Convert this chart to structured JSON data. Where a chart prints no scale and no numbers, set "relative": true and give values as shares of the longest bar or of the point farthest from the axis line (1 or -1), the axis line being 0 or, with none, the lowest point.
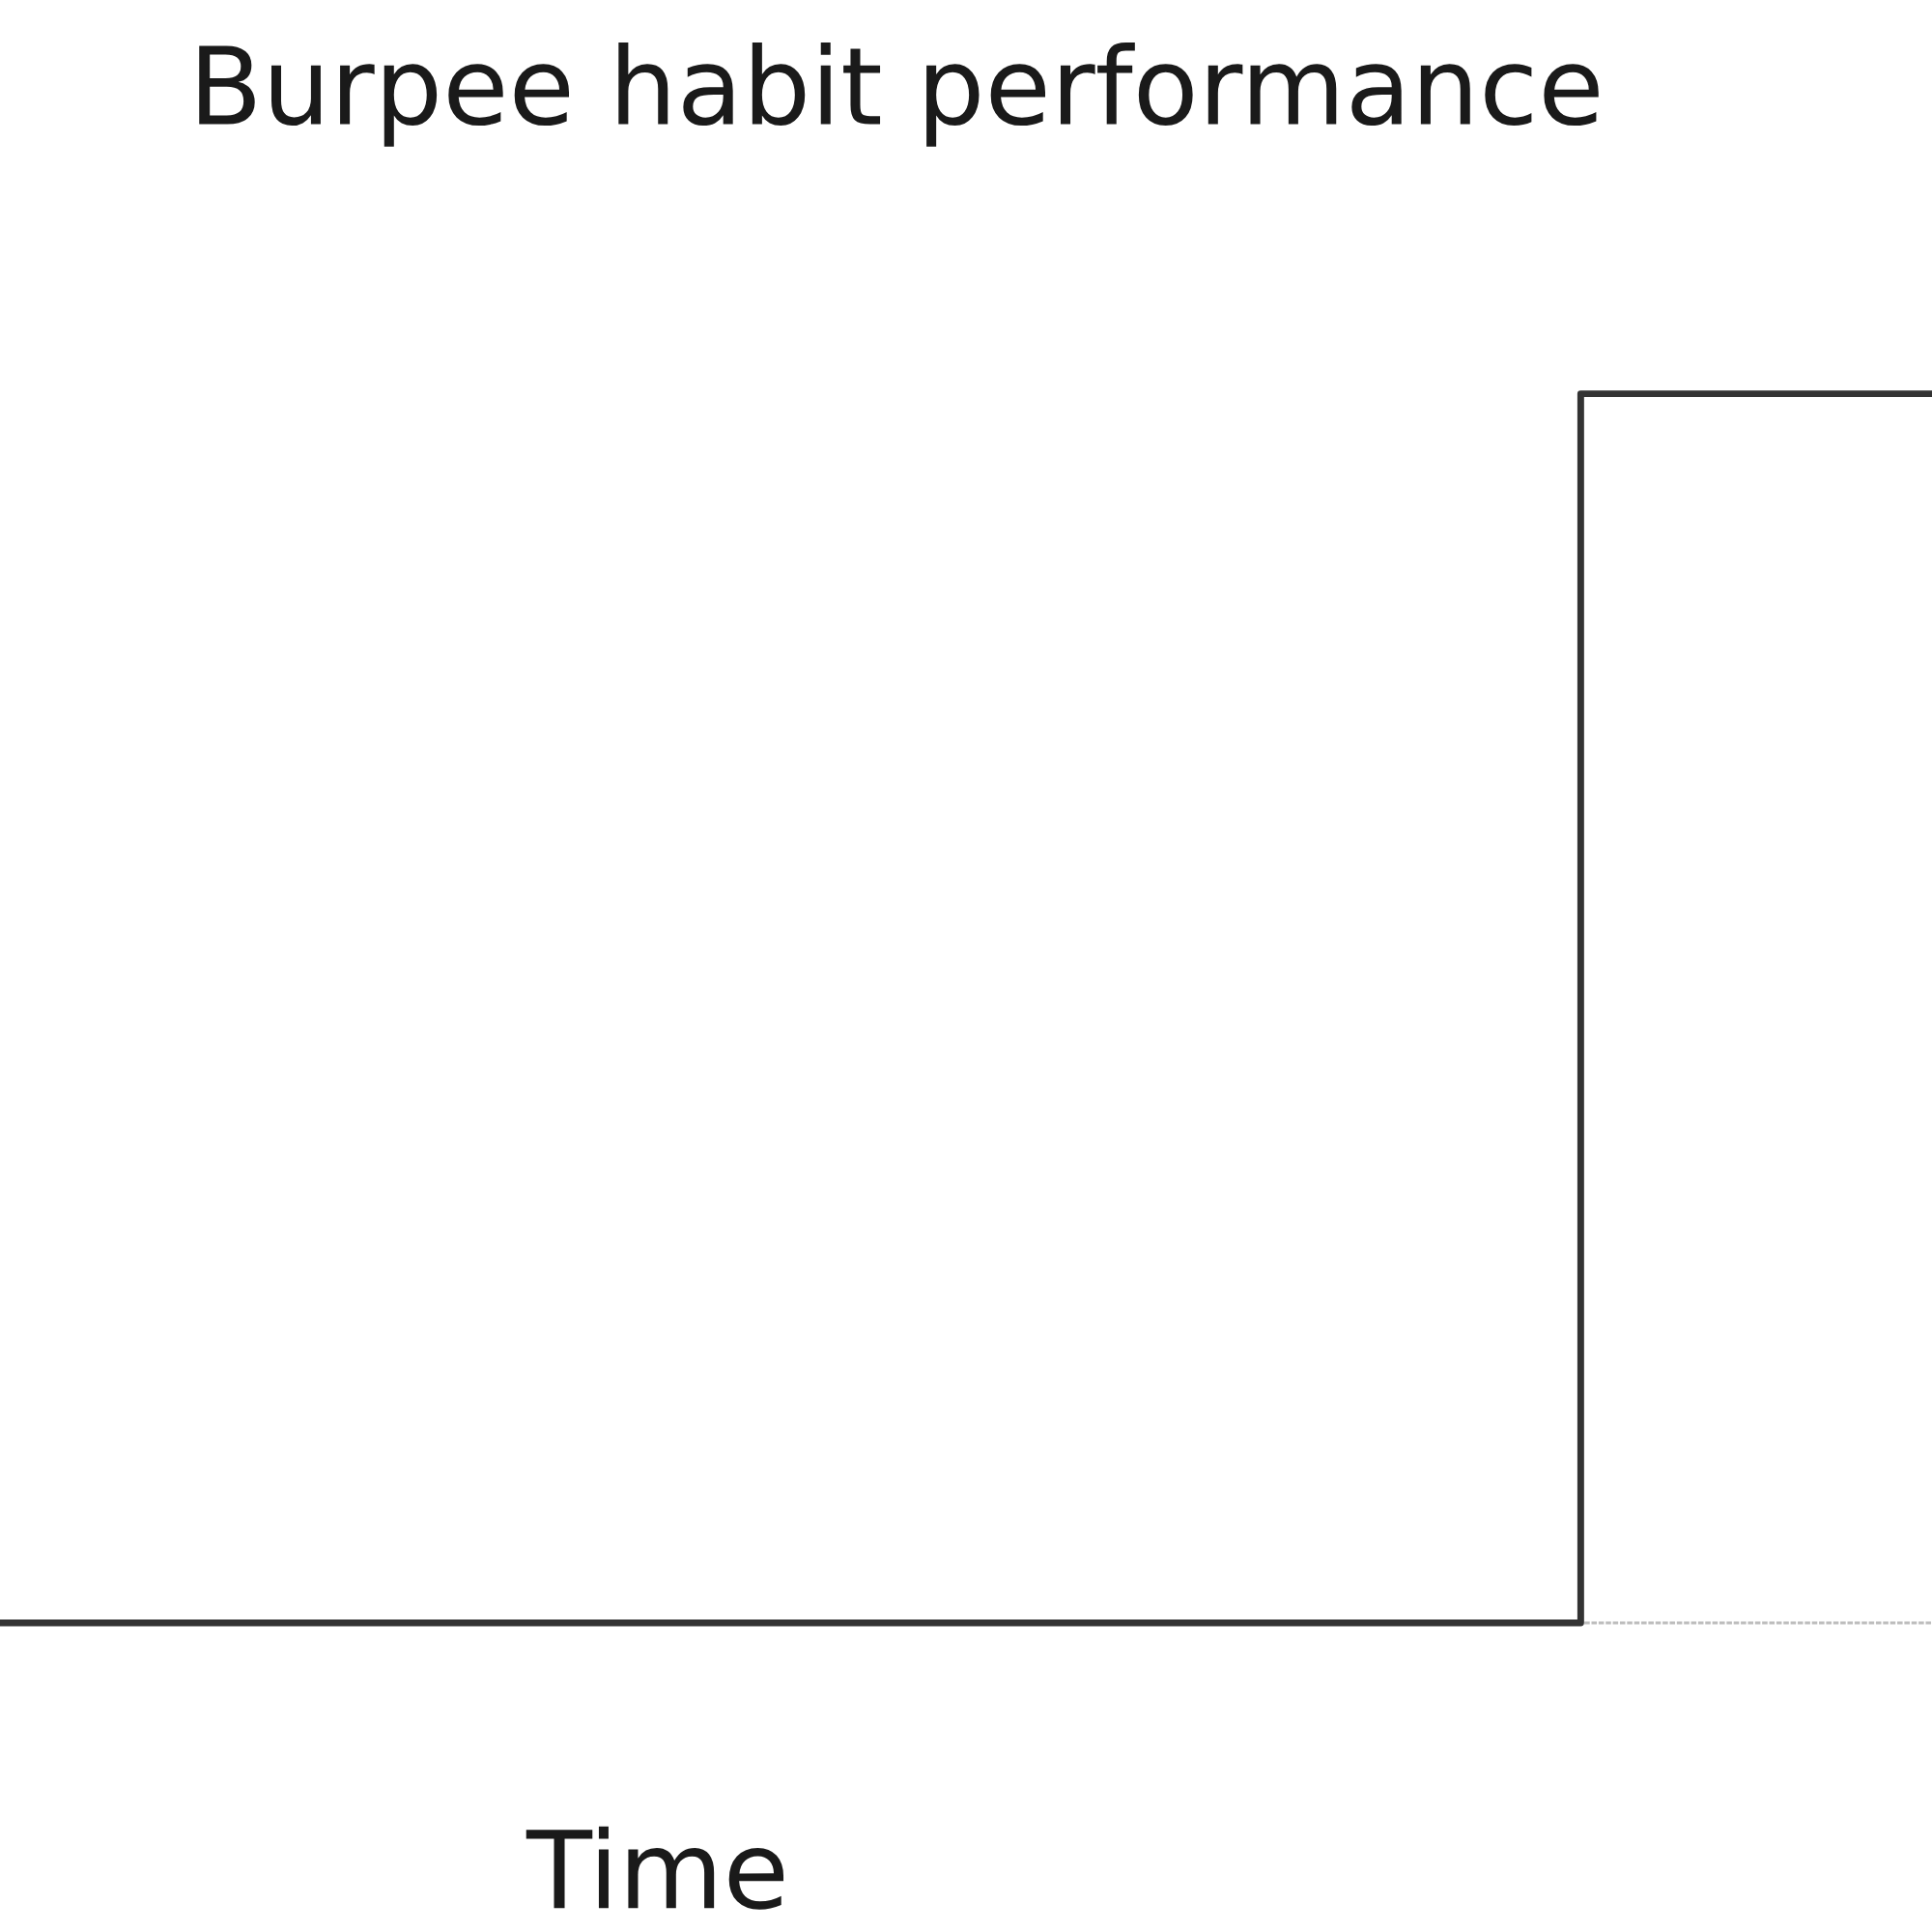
{
  "chart_data": {
    "type": "step",
    "title": "Burpee habit performance",
    "xlabel": "Time",
    "categories": [
      null,
      null,
      null,
      null,
      null,
      null,
      null,
      null,
      null,
      null,
      null,
      null
    ],
    "values": [
      0,
      0,
      0,
      0,
      0,
      0,
      0,
      0,
      0,
      1,
      1,
      1
    ],
    "relative": true,
    "color": "#333333"
  }
}
